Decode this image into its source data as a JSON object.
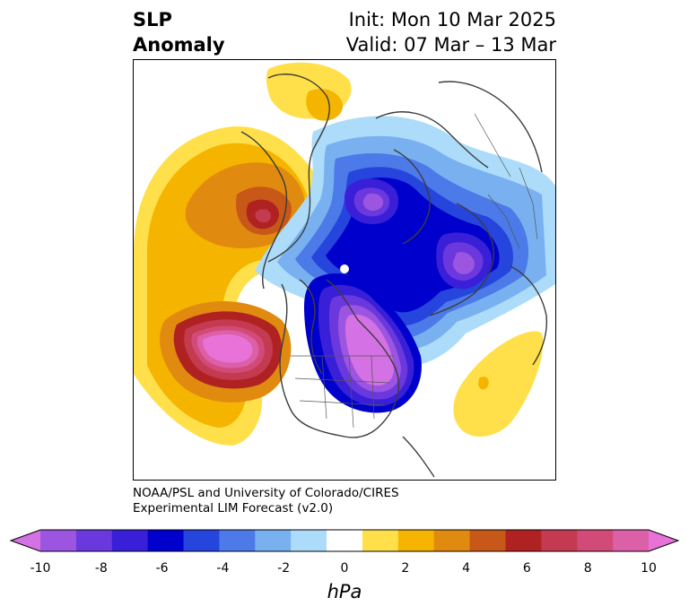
{
  "header": {
    "title_line1": "SLP",
    "title_line2": "Anomaly",
    "init_label": "Init: Mon 10 Mar 2025",
    "valid_label": "Valid: 07 Mar – 13 Mar"
  },
  "credit": {
    "line1": "NOAA/PSL and University of Colorado/CIRES",
    "line2": "Experimental LIM Forecast (v2.0)"
  },
  "colorbar": {
    "ticks": [
      "-10",
      "-8",
      "-6",
      "-4",
      "-2",
      "0",
      "2",
      "4",
      "6",
      "8",
      "10"
    ],
    "unit": "hPa",
    "colors": [
      "#d471e4",
      "#9c55e0",
      "#6b38de",
      "#3a1fd8",
      "#0000cc",
      "#2545dc",
      "#4c7ae8",
      "#79b1f0",
      "#acdcfa",
      "#ffffff",
      "#ffe04a",
      "#f4b400",
      "#e08a10",
      "#c85818",
      "#b02222",
      "#c43a50",
      "#d24a78",
      "#dc60a8",
      "#e872d8"
    ]
  },
  "map": {
    "projection": "north-polar-stereographic",
    "variable": "sea-level-pressure-anomaly"
  }
}
